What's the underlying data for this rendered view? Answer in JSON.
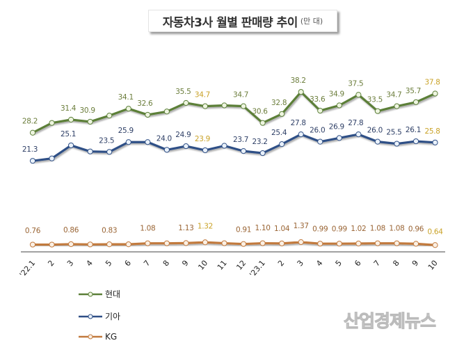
{
  "title": {
    "main": "자동차3사 월별 판매량 추이",
    "unit": "(만 대)"
  },
  "watermark": "산업경제뉴스",
  "chart_data": {
    "type": "line",
    "title": "자동차3사 월별 판매량 추이 (만 대)",
    "xlabel": "",
    "ylabel": "만 대",
    "ylim": [
      0,
      40
    ],
    "grid": false,
    "legend_position": "bottom-left",
    "categories": [
      "'22.1",
      "2",
      "3",
      "4",
      "5",
      "6",
      "7",
      "8",
      "9",
      "10",
      "11",
      "12",
      "'23.1",
      "2",
      "3",
      "4",
      "5",
      "6",
      "7",
      "8",
      "9",
      "10"
    ],
    "highlight_index": [
      9,
      21
    ],
    "series": [
      {
        "name": "현대",
        "color": "#5b7f38",
        "label_color": "#6b7d3b",
        "values": [
          28.2,
          30.6,
          31.4,
          30.9,
          32.4,
          34.1,
          32.6,
          33.4,
          35.5,
          34.7,
          34.9,
          34.7,
          30.6,
          32.8,
          38.2,
          33.6,
          34.9,
          37.5,
          33.5,
          34.7,
          35.7,
          37.8
        ],
        "labels": [
          "28.2",
          "",
          "31.4",
          "30.9",
          "",
          "34.1",
          "32.6",
          "",
          "35.5",
          "34.7",
          "",
          "34.7",
          "30.6",
          "32.8",
          "38.2",
          "33.6",
          "34.9",
          "37.5",
          "33.5",
          "34.7",
          "35.7",
          "37.8"
        ]
      },
      {
        "name": "기아",
        "color": "#2f4f86",
        "label_color": "#2e3f66",
        "values": [
          21.3,
          21.9,
          25.1,
          23.6,
          23.5,
          25.9,
          25.9,
          24.0,
          24.9,
          23.9,
          25.0,
          23.7,
          23.2,
          25.4,
          27.8,
          26.0,
          26.9,
          27.8,
          26.0,
          25.5,
          26.1,
          25.8
        ],
        "labels": [
          "21.3",
          "",
          "25.1",
          "",
          "23.5",
          "25.9",
          "",
          "24.0",
          "24.9",
          "23.9",
          "",
          "23.7",
          "23.2",
          "25.4",
          "27.8",
          "26.0",
          "26.9",
          "27.8",
          "26.0",
          "25.5",
          "26.1",
          "25.8"
        ]
      },
      {
        "name": "KG",
        "color": "#c27a3e",
        "label_color": "#9a6535",
        "values": [
          0.76,
          0.76,
          0.86,
          0.8,
          0.83,
          0.83,
          1.08,
          1.08,
          1.13,
          1.32,
          1.1,
          0.91,
          1.1,
          1.04,
          1.37,
          0.99,
          0.99,
          1.02,
          1.08,
          1.08,
          0.96,
          0.64
        ],
        "labels": [
          "0.76",
          "",
          "0.86",
          "",
          "0.83",
          "",
          "1.08",
          "",
          "1.13",
          "1.32",
          "",
          "0.91",
          "1.10",
          "1.04",
          "1.37",
          "0.99",
          "0.99",
          "1.02",
          "1.08",
          "1.08",
          "0.96",
          "0.64"
        ]
      }
    ],
    "highlight_label_color": "#c9a227"
  }
}
